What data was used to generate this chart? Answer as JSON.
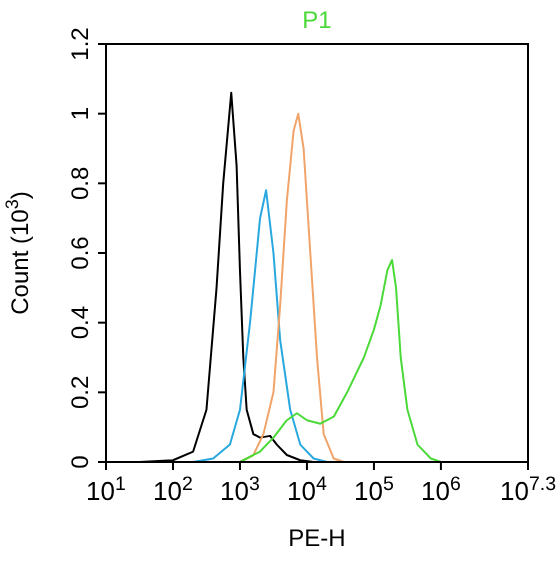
{
  "chart_data": {
    "type": "line",
    "title": "P1",
    "xlabel": "PE-H",
    "ylabel": "Count (10$^{3}$)",
    "log": "x",
    "xlim": [
      10,
      19952623
    ],
    "ylim": [
      0,
      1.2
    ],
    "xticks": [
      {
        "value": 10,
        "label": "10$^{1}$"
      },
      {
        "value": 100,
        "label": "10$^{2}$"
      },
      {
        "value": 1000,
        "label": "10$^{3}$"
      },
      {
        "value": 10000,
        "label": "10$^{4}$"
      },
      {
        "value": 100000,
        "label": "10$^{5}$"
      },
      {
        "value": 1000000,
        "label": "10$^{6}$"
      },
      {
        "value": 19952623,
        "label": "10$^{7.3}$"
      }
    ],
    "yticks": [
      0,
      0.2,
      0.4,
      0.6,
      0.8,
      1,
      1.2
    ],
    "grid": false,
    "marker": "none",
    "line_style": "solid",
    "series": [
      {
        "color": "#000000",
        "x": [
          32,
          100,
          200,
          316,
          447,
          562,
          741,
          891,
          1000,
          1122,
          1259,
          1585,
          1995,
          2818,
          3548,
          5012,
          7943,
          12589
        ],
        "values": [
          0,
          0.005,
          0.03,
          0.15,
          0.5,
          0.8,
          1.06,
          0.85,
          0.55,
          0.3,
          0.15,
          0.08,
          0.07,
          0.075,
          0.05,
          0.02,
          0.005,
          0
        ]
      },
      {
        "color": "#29a8df",
        "x": [
          200,
          398,
          708,
          1000,
          1413,
          1995,
          2455,
          3162,
          3981,
          5623,
          7943,
          12589,
          19953
        ],
        "values": [
          0,
          0.01,
          0.05,
          0.15,
          0.4,
          0.7,
          0.78,
          0.6,
          0.35,
          0.15,
          0.05,
          0.01,
          0
        ]
      },
      {
        "color": "#f0a46a",
        "x": [
          1000,
          1585,
          2239,
          3162,
          3981,
          5012,
          6310,
          7413,
          8913,
          11220,
          14125,
          17783,
          25119,
          35481
        ],
        "values": [
          0,
          0.02,
          0.08,
          0.2,
          0.45,
          0.75,
          0.95,
          1.0,
          0.9,
          0.6,
          0.3,
          0.08,
          0.01,
          0
        ]
      },
      {
        "color": "#4cd93a",
        "x": [
          1000,
          1995,
          3162,
          5012,
          7079,
          10000,
          15849,
          25119,
          39811,
          70795,
          100000,
          125893,
          158489,
          186209,
          213796,
          251189,
          316228,
          446684,
          707946,
          1000000
        ],
        "values": [
          0,
          0.03,
          0.07,
          0.12,
          0.14,
          0.12,
          0.11,
          0.13,
          0.2,
          0.3,
          0.38,
          0.45,
          0.55,
          0.58,
          0.5,
          0.3,
          0.15,
          0.05,
          0.01,
          0
        ]
      }
    ]
  }
}
